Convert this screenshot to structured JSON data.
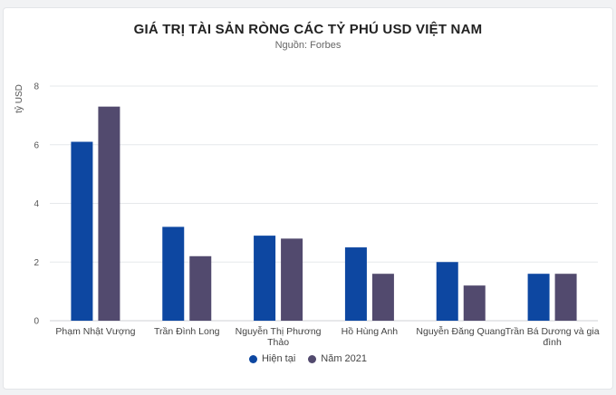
{
  "chart_data": {
    "type": "bar",
    "title": "GIÁ TRỊ TÀI SẢN RÒNG CÁC TỶ PHÚ USD VIỆT NAM",
    "subtitle": "Nguồn: Forbes",
    "ylabel": "tỷ USD",
    "xlabel": "",
    "ylim": [
      0,
      8
    ],
    "yticks": [
      0,
      2,
      4,
      6,
      8
    ],
    "grid": true,
    "legend_position": "bottom",
    "categories": [
      [
        "Phạm Nhật Vượng"
      ],
      [
        "Trần Đình Long"
      ],
      [
        "Nguyễn Thị Phương",
        "Thảo"
      ],
      [
        "Hồ Hùng Anh"
      ],
      [
        "Nguyễn Đăng Quang"
      ],
      [
        "Trần Bá Dương và gia",
        "đình"
      ]
    ],
    "series": [
      {
        "name": "Hiện tại",
        "color": "#0d47a1",
        "values": [
          6.1,
          3.2,
          2.9,
          2.5,
          2.0,
          1.6
        ]
      },
      {
        "name": "Năm 2021",
        "color": "#524a6e",
        "values": [
          7.3,
          2.2,
          2.8,
          1.6,
          1.2,
          1.6
        ]
      }
    ]
  }
}
